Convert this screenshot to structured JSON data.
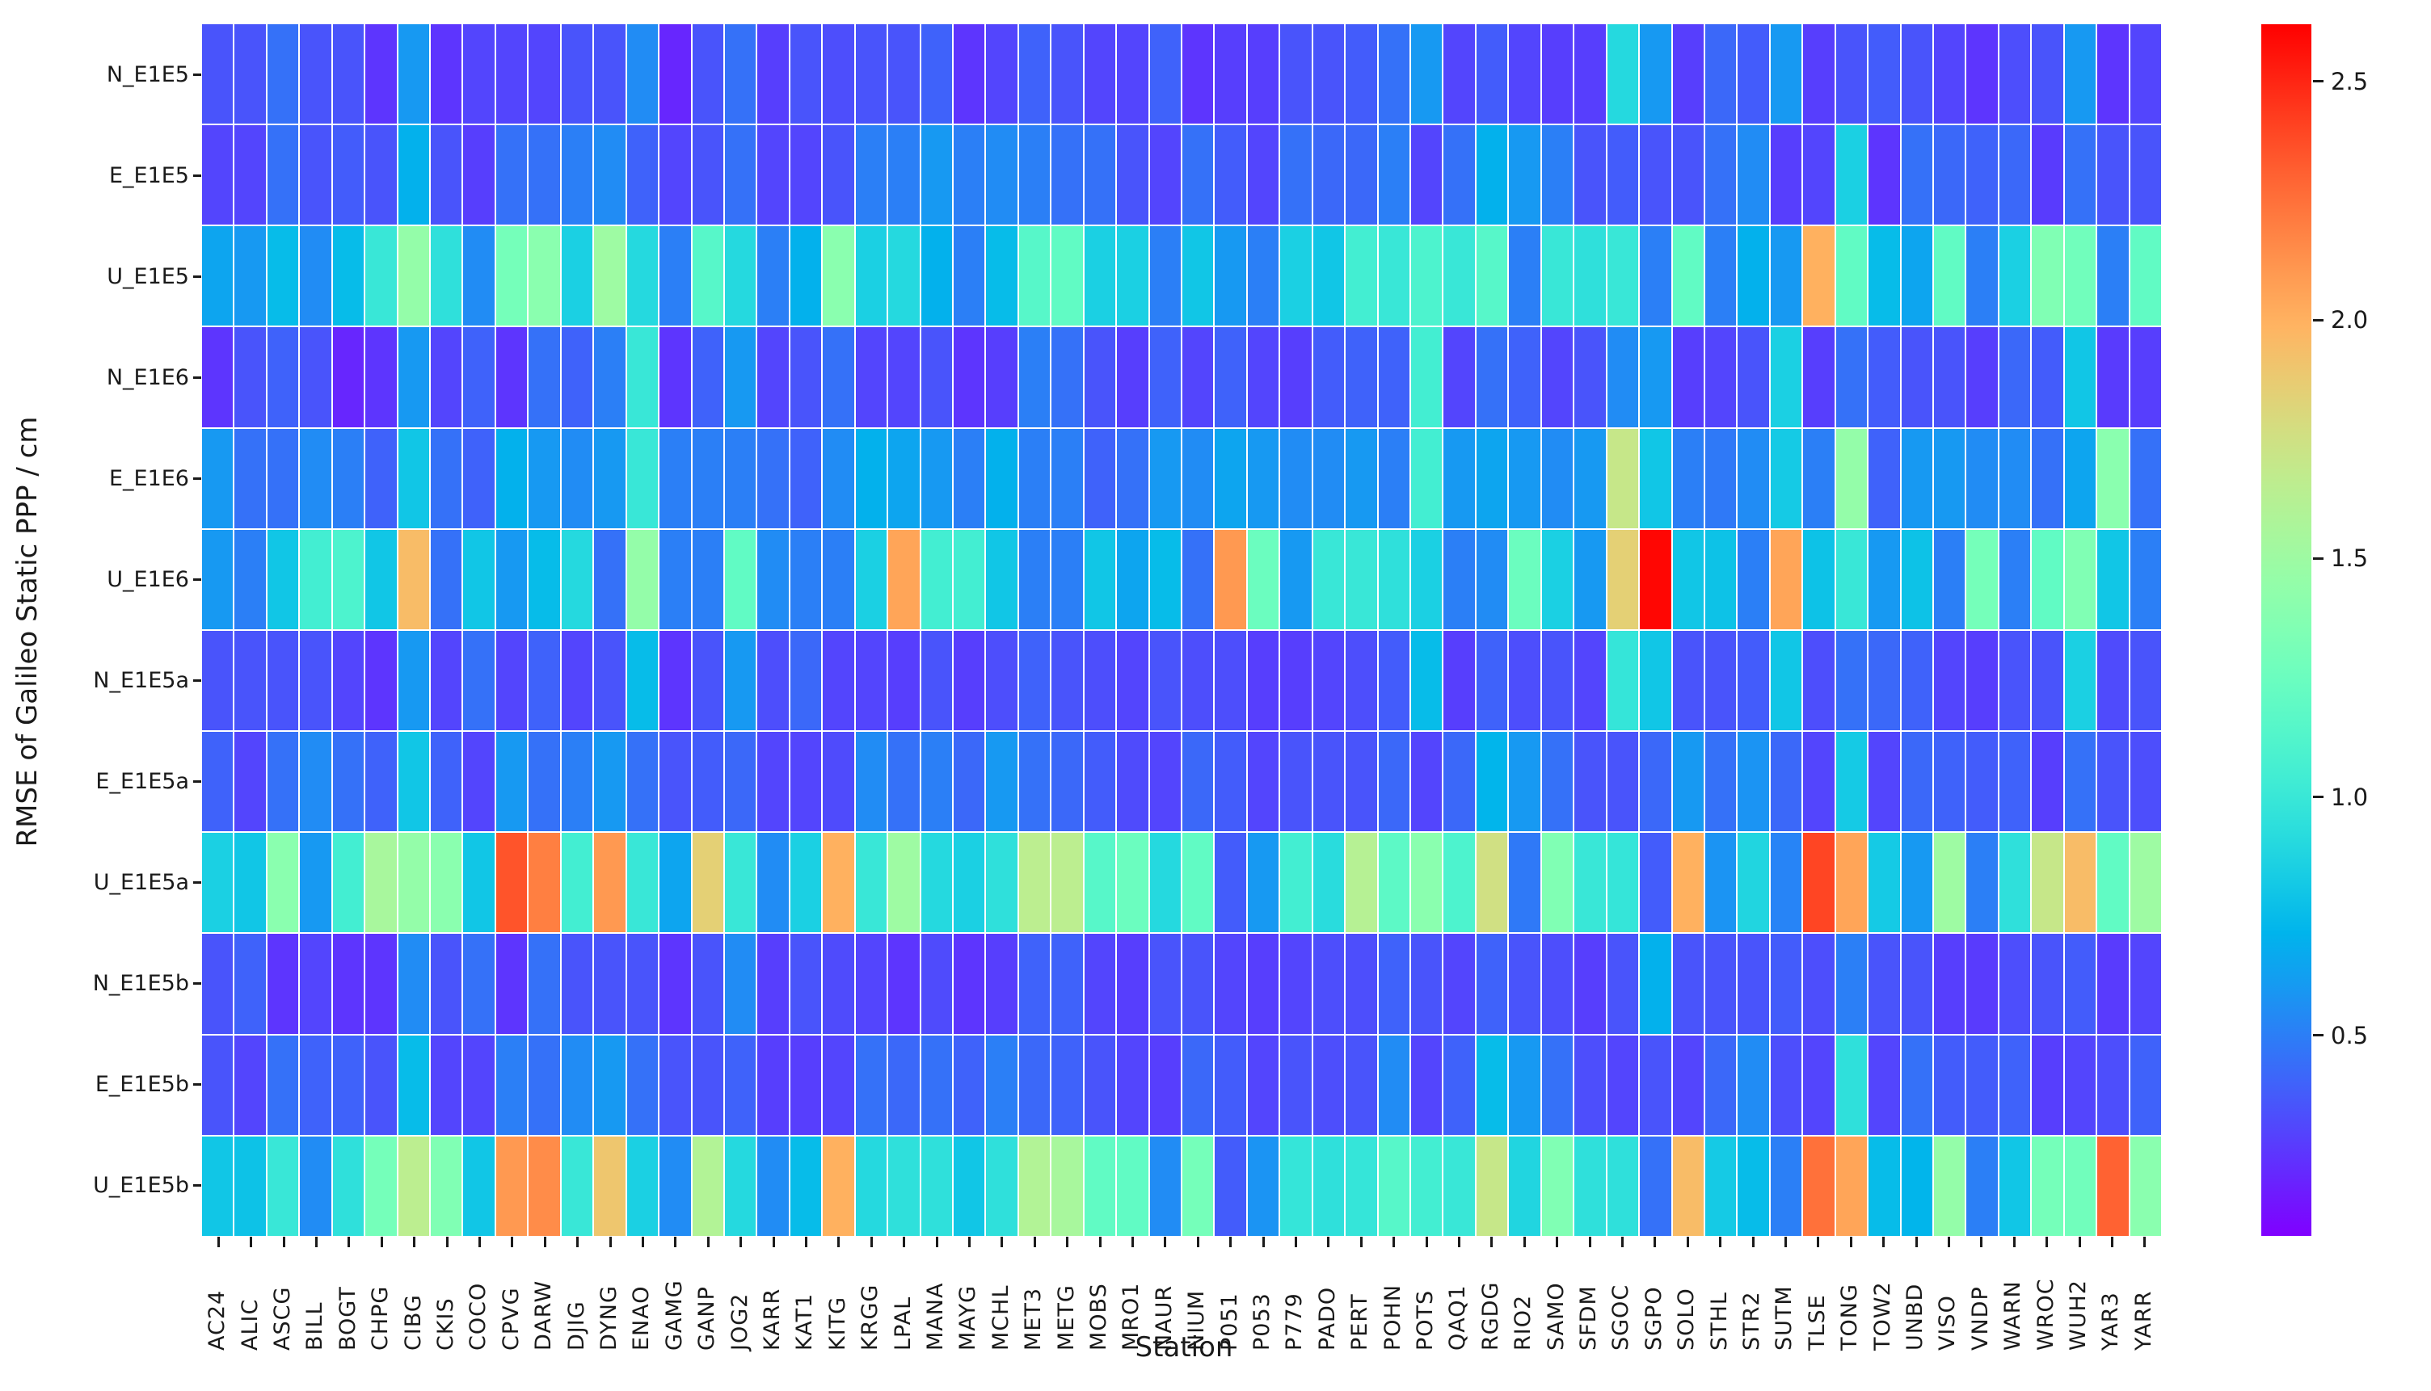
{
  "figure": {
    "xlabel": "Station",
    "ylabel": "RMSE of Galileo Static PPP / cm"
  },
  "chart_data": {
    "type": "heatmap",
    "title": "",
    "xlabel": "Station",
    "ylabel": "RMSE of Galileo Static PPP / cm",
    "colormap": "rainbow",
    "vmin": 0.08,
    "vmax": 2.62,
    "grid": false,
    "legend_position": "right-colorbar",
    "colorbar_ticks": [
      0.5,
      1.0,
      1.5,
      2.0,
      2.5
    ],
    "colorbar_tick_labels": [
      "0.5",
      "1.0",
      "1.5",
      "2.0",
      "2.5"
    ],
    "x_categories": [
      "AC24",
      "ALIC",
      "ASCG",
      "BILL",
      "BOGT",
      "CHPG",
      "CIBG",
      "CKIS",
      "COCO",
      "CPVG",
      "DARW",
      "DJIG",
      "DYNG",
      "ENAO",
      "GAMG",
      "GANP",
      "JOG2",
      "KARR",
      "KAT1",
      "KITG",
      "KRGG",
      "LPAL",
      "MANA",
      "MAYG",
      "MCHL",
      "MET3",
      "METG",
      "MOBS",
      "MRO1",
      "NAUR",
      "NIUM",
      "P051",
      "P053",
      "P779",
      "PADO",
      "PERT",
      "POHN",
      "POTS",
      "QAQ1",
      "RGDG",
      "RIO2",
      "SAMO",
      "SFDM",
      "SGOC",
      "SGPO",
      "SOLO",
      "STHL",
      "STR2",
      "SUTM",
      "TLSE",
      "TONG",
      "TOW2",
      "UNBD",
      "VISO",
      "VNDP",
      "WARN",
      "WROC",
      "WUH2",
      "YAR3",
      "YARR"
    ],
    "y_categories": [
      "N_E1E5",
      "E_E1E5",
      "U_E1E5",
      "N_E1E6",
      "E_E1E6",
      "U_E1E6",
      "N_E1E5a",
      "E_E1E5a",
      "U_E1E5a",
      "N_E1E5b",
      "E_E1E5b",
      "U_E1E5b"
    ],
    "values": [
      [
        0.35,
        0.35,
        0.45,
        0.35,
        0.35,
        0.25,
        0.6,
        0.25,
        0.3,
        0.3,
        0.3,
        0.35,
        0.35,
        0.55,
        0.2,
        0.35,
        0.45,
        0.28,
        0.35,
        0.33,
        0.35,
        0.35,
        0.4,
        0.25,
        0.3,
        0.4,
        0.35,
        0.3,
        0.3,
        0.4,
        0.25,
        0.28,
        0.28,
        0.35,
        0.35,
        0.38,
        0.45,
        0.6,
        0.3,
        0.38,
        0.3,
        0.28,
        0.28,
        0.9,
        0.6,
        0.28,
        0.42,
        0.38,
        0.6,
        0.28,
        0.35,
        0.38,
        0.35,
        0.3,
        0.25,
        0.33,
        0.35,
        0.6,
        0.25,
        0.3
      ],
      [
        0.3,
        0.3,
        0.45,
        0.35,
        0.38,
        0.35,
        0.7,
        0.35,
        0.28,
        0.45,
        0.45,
        0.5,
        0.55,
        0.4,
        0.3,
        0.35,
        0.45,
        0.3,
        0.3,
        0.35,
        0.5,
        0.5,
        0.6,
        0.5,
        0.55,
        0.5,
        0.45,
        0.45,
        0.35,
        0.3,
        0.45,
        0.38,
        0.3,
        0.45,
        0.42,
        0.42,
        0.5,
        0.3,
        0.45,
        0.7,
        0.6,
        0.5,
        0.35,
        0.38,
        0.35,
        0.35,
        0.45,
        0.55,
        0.28,
        0.3,
        0.85,
        0.25,
        0.45,
        0.42,
        0.4,
        0.42,
        0.27,
        0.45,
        0.35,
        0.35
      ],
      [
        0.65,
        0.6,
        0.75,
        0.55,
        0.75,
        1.0,
        1.45,
        0.95,
        0.55,
        1.3,
        1.4,
        0.85,
        1.5,
        0.9,
        0.5,
        1.15,
        0.9,
        0.5,
        0.7,
        1.4,
        0.85,
        0.9,
        0.7,
        0.5,
        0.75,
        1.15,
        1.2,
        0.85,
        0.85,
        0.5,
        0.8,
        0.6,
        0.5,
        0.85,
        0.8,
        1.05,
        1.0,
        1.1,
        1.0,
        1.15,
        0.5,
        1.0,
        0.95,
        1.0,
        0.5,
        1.2,
        0.5,
        0.7,
        0.6,
        2.0,
        1.2,
        0.75,
        0.65,
        1.2,
        0.5,
        0.85,
        1.35,
        1.28,
        0.5,
        1.2
      ],
      [
        0.25,
        0.35,
        0.4,
        0.35,
        0.2,
        0.25,
        0.6,
        0.3,
        0.4,
        0.25,
        0.45,
        0.4,
        0.5,
        1.0,
        0.25,
        0.4,
        0.6,
        0.3,
        0.35,
        0.45,
        0.3,
        0.3,
        0.35,
        0.25,
        0.28,
        0.5,
        0.45,
        0.35,
        0.28,
        0.4,
        0.3,
        0.4,
        0.3,
        0.28,
        0.38,
        0.4,
        0.4,
        1.05,
        0.3,
        0.45,
        0.4,
        0.3,
        0.35,
        0.55,
        0.6,
        0.28,
        0.3,
        0.35,
        0.85,
        0.28,
        0.45,
        0.38,
        0.35,
        0.35,
        0.28,
        0.42,
        0.38,
        0.8,
        0.27,
        0.28
      ],
      [
        0.6,
        0.45,
        0.45,
        0.55,
        0.5,
        0.4,
        0.8,
        0.45,
        0.4,
        0.7,
        0.6,
        0.55,
        0.6,
        1.0,
        0.5,
        0.5,
        0.5,
        0.45,
        0.4,
        0.55,
        0.7,
        0.65,
        0.6,
        0.5,
        0.7,
        0.5,
        0.5,
        0.4,
        0.45,
        0.6,
        0.55,
        0.65,
        0.6,
        0.55,
        0.55,
        0.6,
        0.5,
        1.05,
        0.6,
        0.65,
        0.6,
        0.55,
        0.6,
        1.7,
        0.8,
        0.5,
        0.48,
        0.55,
        0.82,
        0.5,
        1.45,
        0.4,
        0.6,
        0.6,
        0.55,
        0.55,
        0.45,
        0.65,
        1.4,
        0.45
      ],
      [
        0.6,
        0.5,
        0.8,
        1.05,
        1.1,
        0.8,
        1.95,
        0.45,
        0.8,
        0.6,
        0.75,
        0.9,
        0.45,
        1.45,
        0.5,
        0.5,
        1.2,
        0.55,
        0.5,
        0.5,
        0.85,
        2.05,
        1.05,
        1.05,
        0.8,
        0.5,
        0.5,
        0.8,
        0.65,
        0.75,
        0.45,
        2.1,
        1.25,
        0.6,
        1.0,
        1.0,
        0.95,
        0.85,
        0.5,
        0.55,
        1.25,
        0.85,
        0.6,
        1.85,
        2.6,
        0.8,
        0.78,
        0.5,
        2.05,
        0.78,
        1.0,
        0.6,
        0.78,
        0.5,
        1.3,
        0.5,
        1.2,
        1.35,
        0.8,
        0.5
      ],
      [
        0.35,
        0.35,
        0.35,
        0.35,
        0.3,
        0.25,
        0.6,
        0.3,
        0.45,
        0.3,
        0.4,
        0.3,
        0.35,
        0.75,
        0.25,
        0.35,
        0.6,
        0.33,
        0.42,
        0.3,
        0.3,
        0.28,
        0.35,
        0.28,
        0.33,
        0.4,
        0.35,
        0.33,
        0.3,
        0.35,
        0.33,
        0.33,
        0.28,
        0.28,
        0.3,
        0.33,
        0.38,
        0.75,
        0.28,
        0.4,
        0.33,
        0.35,
        0.3,
        0.98,
        0.8,
        0.35,
        0.35,
        0.38,
        0.8,
        0.33,
        0.45,
        0.42,
        0.4,
        0.3,
        0.28,
        0.35,
        0.35,
        0.85,
        0.32,
        0.35
      ],
      [
        0.4,
        0.3,
        0.45,
        0.55,
        0.45,
        0.4,
        0.8,
        0.4,
        0.3,
        0.6,
        0.45,
        0.5,
        0.6,
        0.45,
        0.35,
        0.38,
        0.42,
        0.3,
        0.3,
        0.32,
        0.55,
        0.45,
        0.5,
        0.42,
        0.6,
        0.45,
        0.42,
        0.38,
        0.32,
        0.3,
        0.42,
        0.38,
        0.3,
        0.35,
        0.35,
        0.35,
        0.42,
        0.3,
        0.42,
        0.72,
        0.6,
        0.45,
        0.35,
        0.35,
        0.42,
        0.6,
        0.45,
        0.58,
        0.42,
        0.3,
        0.82,
        0.3,
        0.42,
        0.4,
        0.38,
        0.4,
        0.28,
        0.45,
        0.35,
        0.33
      ],
      [
        0.85,
        0.8,
        1.4,
        0.6,
        1.05,
        1.55,
        1.45,
        1.4,
        0.8,
        2.35,
        2.2,
        1.05,
        2.1,
        1.0,
        0.65,
        1.85,
        1.0,
        0.55,
        0.85,
        2.0,
        1.0,
        1.5,
        0.9,
        0.85,
        0.95,
        1.65,
        1.65,
        1.15,
        1.25,
        0.9,
        1.2,
        0.38,
        0.6,
        1.05,
        0.92,
        1.62,
        1.18,
        1.4,
        1.1,
        1.75,
        0.48,
        1.35,
        1.0,
        0.98,
        0.38,
        2.0,
        0.58,
        0.88,
        0.52,
        2.4,
        2.05,
        0.82,
        0.6,
        1.5,
        0.5,
        0.95,
        1.7,
        1.95,
        1.2,
        1.5
      ],
      [
        0.35,
        0.4,
        0.25,
        0.3,
        0.25,
        0.25,
        0.55,
        0.35,
        0.45,
        0.25,
        0.45,
        0.35,
        0.35,
        0.35,
        0.25,
        0.35,
        0.55,
        0.28,
        0.35,
        0.32,
        0.3,
        0.25,
        0.32,
        0.25,
        0.28,
        0.4,
        0.4,
        0.3,
        0.28,
        0.35,
        0.35,
        0.3,
        0.28,
        0.3,
        0.33,
        0.33,
        0.4,
        0.35,
        0.3,
        0.4,
        0.35,
        0.33,
        0.28,
        0.35,
        0.7,
        0.35,
        0.35,
        0.35,
        0.38,
        0.33,
        0.5,
        0.35,
        0.35,
        0.28,
        0.27,
        0.33,
        0.35,
        0.38,
        0.27,
        0.3
      ],
      [
        0.35,
        0.3,
        0.45,
        0.4,
        0.4,
        0.35,
        0.75,
        0.3,
        0.3,
        0.5,
        0.45,
        0.55,
        0.6,
        0.45,
        0.35,
        0.35,
        0.4,
        0.28,
        0.28,
        0.3,
        0.45,
        0.42,
        0.45,
        0.4,
        0.5,
        0.42,
        0.4,
        0.35,
        0.3,
        0.28,
        0.42,
        0.38,
        0.3,
        0.35,
        0.33,
        0.35,
        0.55,
        0.3,
        0.4,
        0.75,
        0.6,
        0.45,
        0.33,
        0.3,
        0.35,
        0.3,
        0.42,
        0.55,
        0.33,
        0.3,
        0.95,
        0.3,
        0.45,
        0.38,
        0.38,
        0.4,
        0.28,
        0.3,
        0.33,
        0.4
      ],
      [
        0.8,
        0.78,
        1.0,
        0.55,
        0.95,
        1.3,
        1.65,
        1.35,
        0.8,
        2.1,
        2.15,
        1.0,
        1.9,
        0.85,
        0.55,
        1.6,
        0.9,
        0.55,
        0.75,
        2.0,
        0.9,
        0.95,
        0.95,
        0.8,
        0.95,
        1.6,
        1.55,
        1.2,
        1.2,
        0.55,
        1.3,
        0.38,
        0.58,
        0.98,
        0.95,
        0.98,
        1.15,
        1.05,
        1.0,
        1.7,
        0.88,
        1.35,
        0.95,
        0.95,
        0.45,
        1.95,
        0.82,
        0.75,
        0.5,
        2.25,
        2.05,
        0.75,
        0.72,
        1.45,
        0.5,
        0.8,
        1.3,
        1.28,
        2.3,
        1.4
      ]
    ]
  }
}
